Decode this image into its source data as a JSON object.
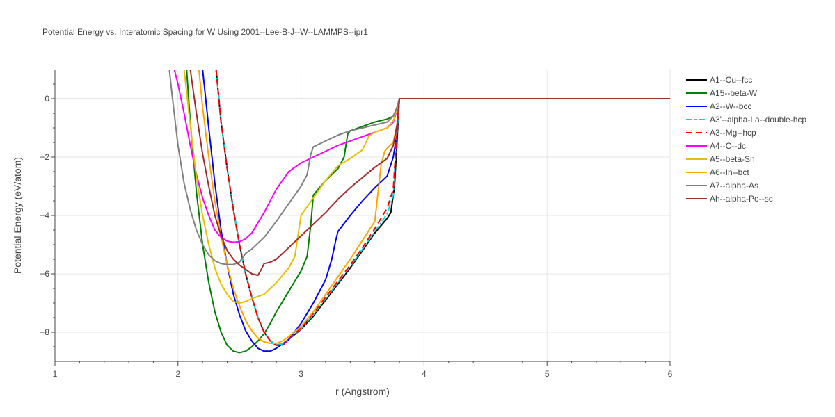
{
  "chart_data": {
    "type": "line",
    "title": "Potential Energy vs. Interatomic Spacing for W Using 2001--Lee-B-J--W--LAMMPS--ipr1",
    "xlabel": "r (Angstrom)",
    "ylabel": "Potential Energy (eV/atom)",
    "xlim": [
      1,
      6
    ],
    "ylim": [
      -9,
      1
    ],
    "xticks": [
      1,
      2,
      3,
      4,
      5,
      6
    ],
    "yticks": [
      0,
      -2,
      -4,
      -6,
      -8
    ],
    "ytick_labels": [
      "0",
      "−2",
      "−4",
      "−6",
      "−8"
    ],
    "grid": true,
    "legend_position": "right",
    "series": [
      {
        "name": "A1--Cu--fcc",
        "color": "#000000",
        "dash": "solid",
        "x": [
          2.31,
          2.35,
          2.4,
          2.45,
          2.5,
          2.55,
          2.6,
          2.65,
          2.7,
          2.75,
          2.8,
          2.85,
          2.9,
          3.0,
          3.1,
          3.2,
          3.3,
          3.4,
          3.5,
          3.6,
          3.7,
          3.73,
          3.76,
          3.78,
          3.8,
          6.0
        ],
        "y": [
          1.0,
          -0.8,
          -2.4,
          -3.8,
          -5.0,
          -6.0,
          -6.8,
          -7.5,
          -8.0,
          -8.3,
          -8.45,
          -8.4,
          -8.25,
          -7.9,
          -7.45,
          -6.9,
          -6.35,
          -5.8,
          -5.2,
          -4.6,
          -4.1,
          -3.9,
          -3.0,
          -1.5,
          0.0,
          0.0
        ]
      },
      {
        "name": "A15--beta-W",
        "color": "#008000",
        "dash": "solid",
        "x": [
          2.07,
          2.1,
          2.15,
          2.2,
          2.25,
          2.3,
          2.35,
          2.4,
          2.45,
          2.5,
          2.55,
          2.6,
          2.65,
          2.7,
          2.75,
          2.8,
          2.9,
          3.0,
          3.05,
          3.08,
          3.1,
          3.2,
          3.3,
          3.35,
          3.38,
          3.4,
          3.5,
          3.6,
          3.7,
          3.75,
          3.78,
          3.8,
          6.0
        ],
        "y": [
          1.0,
          -0.8,
          -3.2,
          -5.0,
          -6.3,
          -7.3,
          -8.0,
          -8.45,
          -8.65,
          -8.7,
          -8.65,
          -8.5,
          -8.3,
          -8.05,
          -7.7,
          -7.3,
          -6.6,
          -5.9,
          -5.4,
          -4.3,
          -3.3,
          -2.8,
          -2.4,
          -2.0,
          -1.2,
          -1.1,
          -0.95,
          -0.8,
          -0.7,
          -0.6,
          -0.3,
          0.0,
          0.0
        ]
      },
      {
        "name": "A2--W--bcc",
        "color": "#0000ff",
        "dash": "solid",
        "x": [
          2.2,
          2.25,
          2.3,
          2.35,
          2.4,
          2.45,
          2.5,
          2.55,
          2.6,
          2.65,
          2.7,
          2.75,
          2.8,
          2.9,
          3.0,
          3.1,
          3.2,
          3.25,
          3.28,
          3.3,
          3.4,
          3.5,
          3.6,
          3.7,
          3.75,
          3.78,
          3.8,
          6.0
        ],
        "y": [
          1.0,
          -1.0,
          -2.9,
          -4.5,
          -5.7,
          -6.7,
          -7.4,
          -7.95,
          -8.3,
          -8.55,
          -8.65,
          -8.65,
          -8.55,
          -8.25,
          -7.7,
          -7.0,
          -6.2,
          -5.5,
          -4.9,
          -4.55,
          -4.0,
          -3.5,
          -3.05,
          -2.65,
          -2.0,
          -1.2,
          0.0,
          0.0
        ]
      },
      {
        "name": "A3'--alpha-La--double-hcp",
        "color": "#00d8d8",
        "dash": "dashdot",
        "x": [
          2.31,
          2.35,
          2.4,
          2.45,
          2.5,
          2.55,
          2.6,
          2.65,
          2.7,
          2.75,
          2.8,
          2.85,
          2.9,
          3.0,
          3.1,
          3.2,
          3.3,
          3.4,
          3.5,
          3.6,
          3.7,
          3.75,
          3.77,
          3.8,
          6.0
        ],
        "y": [
          1.0,
          -0.8,
          -2.4,
          -3.8,
          -5.0,
          -6.0,
          -6.8,
          -7.5,
          -8.0,
          -8.3,
          -8.42,
          -8.4,
          -8.25,
          -7.88,
          -7.4,
          -6.85,
          -6.3,
          -5.75,
          -5.15,
          -4.55,
          -3.95,
          -3.3,
          -1.8,
          0.0,
          0.0
        ]
      },
      {
        "name": "A3--Mg--hcp",
        "color": "#ff0000",
        "dash": "dash",
        "x": [
          2.31,
          2.35,
          2.4,
          2.45,
          2.5,
          2.55,
          2.6,
          2.65,
          2.7,
          2.75,
          2.8,
          2.85,
          2.9,
          3.0,
          3.1,
          3.2,
          3.3,
          3.4,
          3.5,
          3.6,
          3.7,
          3.75,
          3.77,
          3.8,
          6.0
        ],
        "y": [
          1.0,
          -0.8,
          -2.4,
          -3.8,
          -5.0,
          -6.0,
          -6.8,
          -7.5,
          -8.0,
          -8.3,
          -8.45,
          -8.45,
          -8.25,
          -7.85,
          -7.35,
          -6.8,
          -6.25,
          -5.7,
          -5.1,
          -4.45,
          -3.75,
          -3.1,
          -1.8,
          0.0,
          0.0
        ]
      },
      {
        "name": "A4--C--dc",
        "color": "#ff00ff",
        "dash": "solid",
        "x": [
          1.97,
          2.0,
          2.05,
          2.1,
          2.15,
          2.2,
          2.25,
          2.3,
          2.35,
          2.4,
          2.45,
          2.5,
          2.55,
          2.6,
          2.7,
          2.8,
          2.9,
          3.0,
          3.1,
          3.2,
          3.3,
          3.4,
          3.5,
          3.6,
          3.7,
          3.75,
          3.78,
          3.8,
          6.0
        ],
        "y": [
          1.0,
          0.5,
          -0.5,
          -1.6,
          -2.6,
          -3.4,
          -4.0,
          -4.5,
          -4.75,
          -4.88,
          -4.92,
          -4.9,
          -4.8,
          -4.6,
          -3.9,
          -3.1,
          -2.5,
          -2.2,
          -2.0,
          -1.8,
          -1.6,
          -1.45,
          -1.3,
          -1.15,
          -1.0,
          -0.8,
          -0.4,
          0.0,
          0.0
        ]
      },
      {
        "name": "A5--beta-Sn",
        "color": "#e6c000",
        "dash": "solid",
        "x": [
          2.05,
          2.1,
          2.15,
          2.2,
          2.25,
          2.3,
          2.35,
          2.4,
          2.45,
          2.5,
          2.55,
          2.6,
          2.7,
          2.8,
          2.9,
          2.95,
          3.0,
          3.05,
          3.1,
          3.2,
          3.3,
          3.4,
          3.5,
          3.55,
          3.58,
          3.6,
          3.7,
          3.75,
          3.78,
          3.8,
          6.0
        ],
        "y": [
          1.0,
          -0.9,
          -2.7,
          -4.0,
          -5.0,
          -5.8,
          -6.35,
          -6.7,
          -6.95,
          -7.0,
          -6.95,
          -6.85,
          -6.7,
          -6.3,
          -5.8,
          -5.4,
          -4.0,
          -3.7,
          -3.4,
          -2.8,
          -2.3,
          -2.05,
          -1.75,
          -1.3,
          -1.2,
          -1.15,
          -1.0,
          -0.75,
          -0.35,
          0.0,
          0.0
        ]
      },
      {
        "name": "A6--In--bct",
        "color": "#ffa500",
        "dash": "solid",
        "x": [
          2.17,
          2.2,
          2.25,
          2.3,
          2.35,
          2.4,
          2.45,
          2.5,
          2.55,
          2.6,
          2.65,
          2.7,
          2.75,
          2.8,
          2.85,
          2.9,
          3.0,
          3.1,
          3.2,
          3.3,
          3.4,
          3.5,
          3.6,
          3.65,
          3.68,
          3.7,
          3.75,
          3.78,
          3.8,
          6.0
        ],
        "y": [
          1.0,
          -0.3,
          -2.0,
          -3.5,
          -4.7,
          -5.7,
          -6.5,
          -7.1,
          -7.6,
          -7.95,
          -8.2,
          -8.33,
          -8.38,
          -8.38,
          -8.3,
          -8.15,
          -7.8,
          -7.3,
          -6.7,
          -6.1,
          -5.5,
          -4.85,
          -4.2,
          -2.3,
          -1.8,
          -1.7,
          -1.5,
          -0.9,
          0.0,
          0.0
        ]
      },
      {
        "name": "A7--alpha-As",
        "color": "#808080",
        "dash": "solid",
        "x": [
          1.93,
          1.95,
          2.0,
          2.05,
          2.1,
          2.15,
          2.2,
          2.25,
          2.3,
          2.35,
          2.4,
          2.45,
          2.5,
          2.55,
          2.6,
          2.7,
          2.8,
          2.9,
          3.0,
          3.05,
          3.08,
          3.1,
          3.2,
          3.3,
          3.4,
          3.5,
          3.6,
          3.7,
          3.75,
          3.78,
          3.8,
          6.0
        ],
        "y": [
          1.0,
          0.2,
          -1.6,
          -2.9,
          -3.8,
          -4.5,
          -5.0,
          -5.35,
          -5.55,
          -5.65,
          -5.68,
          -5.68,
          -5.6,
          -5.3,
          -5.15,
          -4.75,
          -4.2,
          -3.6,
          -3.0,
          -2.6,
          -1.9,
          -1.65,
          -1.45,
          -1.25,
          -1.1,
          -1.0,
          -0.9,
          -0.8,
          -0.6,
          -0.3,
          0.0,
          0.0
        ]
      },
      {
        "name": "Ah--alpha-Po--sc",
        "color": "#a52a2a",
        "dash": "solid",
        "x": [
          2.1,
          2.15,
          2.2,
          2.25,
          2.3,
          2.35,
          2.4,
          2.45,
          2.5,
          2.55,
          2.6,
          2.65,
          2.67,
          2.7,
          2.75,
          2.8,
          2.9,
          3.0,
          3.1,
          3.2,
          3.3,
          3.4,
          3.5,
          3.6,
          3.7,
          3.75,
          3.78,
          3.8,
          6.0
        ],
        "y": [
          1.0,
          -0.5,
          -1.9,
          -3.0,
          -4.0,
          -4.7,
          -5.2,
          -5.5,
          -5.7,
          -5.85,
          -6.0,
          -6.05,
          -5.9,
          -5.65,
          -5.6,
          -5.5,
          -5.1,
          -4.7,
          -4.3,
          -3.9,
          -3.45,
          -3.05,
          -2.7,
          -2.35,
          -2.05,
          -1.6,
          -0.9,
          0.0,
          0.0
        ]
      }
    ]
  }
}
